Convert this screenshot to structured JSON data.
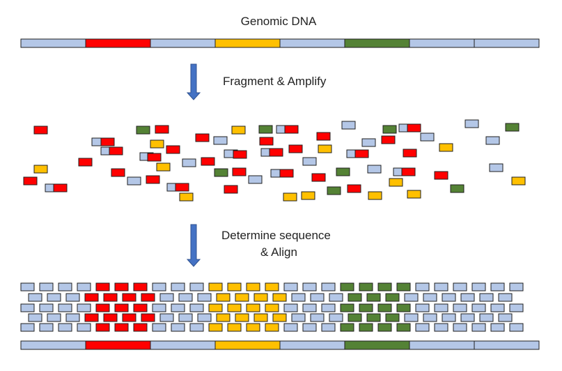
{
  "labels": {
    "title": "Genomic DNA",
    "step_fragment": "Fragment & Amplify",
    "step_align_line1": "Determine sequence",
    "step_align_line2": "& Align"
  },
  "colors": {
    "backbone": "#b4c7e7",
    "red": "#ff0000",
    "orange": "#ffc000",
    "green": "#548235",
    "arrow": "#4472c4",
    "stroke": "#1f1f1f"
  },
  "genome_segments": [
    "backbone",
    "red",
    "backbone",
    "orange",
    "backbone",
    "green",
    "backbone",
    "backbone"
  ]
}
